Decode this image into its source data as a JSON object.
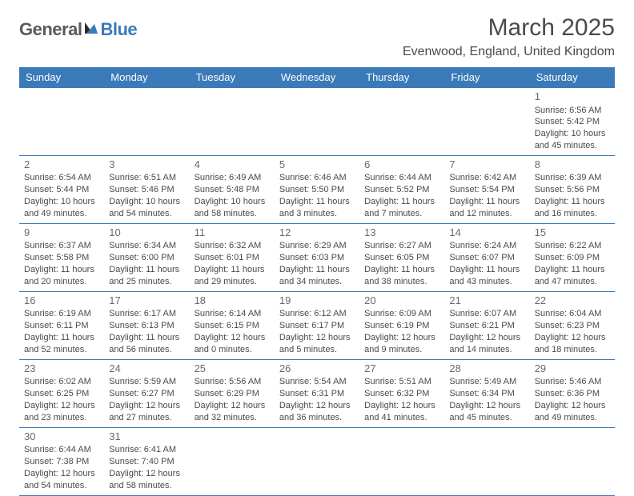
{
  "logo": {
    "part1": "General",
    "part2": "Blue"
  },
  "title": "March 2025",
  "location": "Evenwood, England, United Kingdom",
  "colors": {
    "header_bg": "#3a7ab8",
    "header_text": "#ffffff",
    "border": "#3a7ab8",
    "text": "#4a4a4a",
    "logo_gray": "#58595b",
    "logo_blue": "#3a7ab8",
    "background": "#ffffff"
  },
  "weekdays": [
    "Sunday",
    "Monday",
    "Tuesday",
    "Wednesday",
    "Thursday",
    "Friday",
    "Saturday"
  ],
  "weeks": [
    [
      null,
      null,
      null,
      null,
      null,
      null,
      {
        "n": "1",
        "sr": "Sunrise: 6:56 AM",
        "ss": "Sunset: 5:42 PM",
        "d1": "Daylight: 10 hours",
        "d2": "and 45 minutes."
      }
    ],
    [
      {
        "n": "2",
        "sr": "Sunrise: 6:54 AM",
        "ss": "Sunset: 5:44 PM",
        "d1": "Daylight: 10 hours",
        "d2": "and 49 minutes."
      },
      {
        "n": "3",
        "sr": "Sunrise: 6:51 AM",
        "ss": "Sunset: 5:46 PM",
        "d1": "Daylight: 10 hours",
        "d2": "and 54 minutes."
      },
      {
        "n": "4",
        "sr": "Sunrise: 6:49 AM",
        "ss": "Sunset: 5:48 PM",
        "d1": "Daylight: 10 hours",
        "d2": "and 58 minutes."
      },
      {
        "n": "5",
        "sr": "Sunrise: 6:46 AM",
        "ss": "Sunset: 5:50 PM",
        "d1": "Daylight: 11 hours",
        "d2": "and 3 minutes."
      },
      {
        "n": "6",
        "sr": "Sunrise: 6:44 AM",
        "ss": "Sunset: 5:52 PM",
        "d1": "Daylight: 11 hours",
        "d2": "and 7 minutes."
      },
      {
        "n": "7",
        "sr": "Sunrise: 6:42 AM",
        "ss": "Sunset: 5:54 PM",
        "d1": "Daylight: 11 hours",
        "d2": "and 12 minutes."
      },
      {
        "n": "8",
        "sr": "Sunrise: 6:39 AM",
        "ss": "Sunset: 5:56 PM",
        "d1": "Daylight: 11 hours",
        "d2": "and 16 minutes."
      }
    ],
    [
      {
        "n": "9",
        "sr": "Sunrise: 6:37 AM",
        "ss": "Sunset: 5:58 PM",
        "d1": "Daylight: 11 hours",
        "d2": "and 20 minutes."
      },
      {
        "n": "10",
        "sr": "Sunrise: 6:34 AM",
        "ss": "Sunset: 6:00 PM",
        "d1": "Daylight: 11 hours",
        "d2": "and 25 minutes."
      },
      {
        "n": "11",
        "sr": "Sunrise: 6:32 AM",
        "ss": "Sunset: 6:01 PM",
        "d1": "Daylight: 11 hours",
        "d2": "and 29 minutes."
      },
      {
        "n": "12",
        "sr": "Sunrise: 6:29 AM",
        "ss": "Sunset: 6:03 PM",
        "d1": "Daylight: 11 hours",
        "d2": "and 34 minutes."
      },
      {
        "n": "13",
        "sr": "Sunrise: 6:27 AM",
        "ss": "Sunset: 6:05 PM",
        "d1": "Daylight: 11 hours",
        "d2": "and 38 minutes."
      },
      {
        "n": "14",
        "sr": "Sunrise: 6:24 AM",
        "ss": "Sunset: 6:07 PM",
        "d1": "Daylight: 11 hours",
        "d2": "and 43 minutes."
      },
      {
        "n": "15",
        "sr": "Sunrise: 6:22 AM",
        "ss": "Sunset: 6:09 PM",
        "d1": "Daylight: 11 hours",
        "d2": "and 47 minutes."
      }
    ],
    [
      {
        "n": "16",
        "sr": "Sunrise: 6:19 AM",
        "ss": "Sunset: 6:11 PM",
        "d1": "Daylight: 11 hours",
        "d2": "and 52 minutes."
      },
      {
        "n": "17",
        "sr": "Sunrise: 6:17 AM",
        "ss": "Sunset: 6:13 PM",
        "d1": "Daylight: 11 hours",
        "d2": "and 56 minutes."
      },
      {
        "n": "18",
        "sr": "Sunrise: 6:14 AM",
        "ss": "Sunset: 6:15 PM",
        "d1": "Daylight: 12 hours",
        "d2": "and 0 minutes."
      },
      {
        "n": "19",
        "sr": "Sunrise: 6:12 AM",
        "ss": "Sunset: 6:17 PM",
        "d1": "Daylight: 12 hours",
        "d2": "and 5 minutes."
      },
      {
        "n": "20",
        "sr": "Sunrise: 6:09 AM",
        "ss": "Sunset: 6:19 PM",
        "d1": "Daylight: 12 hours",
        "d2": "and 9 minutes."
      },
      {
        "n": "21",
        "sr": "Sunrise: 6:07 AM",
        "ss": "Sunset: 6:21 PM",
        "d1": "Daylight: 12 hours",
        "d2": "and 14 minutes."
      },
      {
        "n": "22",
        "sr": "Sunrise: 6:04 AM",
        "ss": "Sunset: 6:23 PM",
        "d1": "Daylight: 12 hours",
        "d2": "and 18 minutes."
      }
    ],
    [
      {
        "n": "23",
        "sr": "Sunrise: 6:02 AM",
        "ss": "Sunset: 6:25 PM",
        "d1": "Daylight: 12 hours",
        "d2": "and 23 minutes."
      },
      {
        "n": "24",
        "sr": "Sunrise: 5:59 AM",
        "ss": "Sunset: 6:27 PM",
        "d1": "Daylight: 12 hours",
        "d2": "and 27 minutes."
      },
      {
        "n": "25",
        "sr": "Sunrise: 5:56 AM",
        "ss": "Sunset: 6:29 PM",
        "d1": "Daylight: 12 hours",
        "d2": "and 32 minutes."
      },
      {
        "n": "26",
        "sr": "Sunrise: 5:54 AM",
        "ss": "Sunset: 6:31 PM",
        "d1": "Daylight: 12 hours",
        "d2": "and 36 minutes."
      },
      {
        "n": "27",
        "sr": "Sunrise: 5:51 AM",
        "ss": "Sunset: 6:32 PM",
        "d1": "Daylight: 12 hours",
        "d2": "and 41 minutes."
      },
      {
        "n": "28",
        "sr": "Sunrise: 5:49 AM",
        "ss": "Sunset: 6:34 PM",
        "d1": "Daylight: 12 hours",
        "d2": "and 45 minutes."
      },
      {
        "n": "29",
        "sr": "Sunrise: 5:46 AM",
        "ss": "Sunset: 6:36 PM",
        "d1": "Daylight: 12 hours",
        "d2": "and 49 minutes."
      }
    ],
    [
      {
        "n": "30",
        "sr": "Sunrise: 6:44 AM",
        "ss": "Sunset: 7:38 PM",
        "d1": "Daylight: 12 hours",
        "d2": "and 54 minutes."
      },
      {
        "n": "31",
        "sr": "Sunrise: 6:41 AM",
        "ss": "Sunset: 7:40 PM",
        "d1": "Daylight: 12 hours",
        "d2": "and 58 minutes."
      },
      null,
      null,
      null,
      null,
      null
    ]
  ]
}
